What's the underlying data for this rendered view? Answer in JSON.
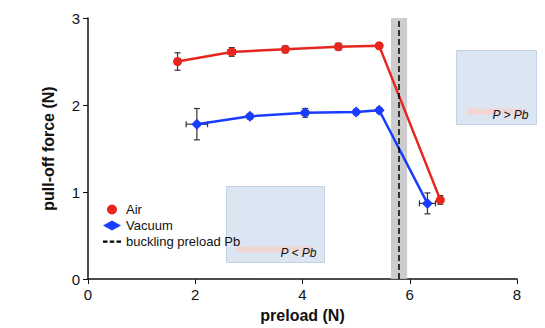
{
  "chart_data": {
    "type": "line",
    "x_label": "preload (N)",
    "y_label": "pull-off force (N)",
    "xlim": [
      0,
      8
    ],
    "xticks": [
      0,
      2,
      4,
      6,
      8
    ],
    "ylim": [
      0,
      3
    ],
    "yticks": [
      0,
      1,
      2,
      3
    ],
    "grid": false,
    "legend": "lower left",
    "series": [
      {
        "name": "Air",
        "color": "#e8261f",
        "marker": "circle",
        "line_style": "solid",
        "x": [
          1.67,
          2.68,
          3.68,
          4.67,
          5.43,
          6.57
        ],
        "values": [
          2.5,
          2.61,
          2.64,
          2.67,
          2.68,
          0.91
        ],
        "x_err": [
          0.05,
          0.07,
          0.04,
          0.05,
          0.03,
          0.05
        ],
        "y_err": [
          0.1,
          0.05,
          0.04,
          0.04,
          0.03,
          0.05
        ]
      },
      {
        "name": "Vacuum",
        "color": "#1a3cff",
        "marker": "diamond",
        "line_style": "solid",
        "x": [
          2.03,
          3.02,
          4.05,
          5.0,
          5.43,
          6.33
        ],
        "values": [
          1.78,
          1.87,
          1.91,
          1.92,
          1.94,
          0.87
        ],
        "x_err": [
          0.2,
          0.05,
          0.06,
          0.04,
          0.03,
          0.15
        ],
        "y_err": [
          0.18,
          0.03,
          0.05,
          0.03,
          0.03,
          0.12
        ]
      },
      {
        "name": "buckling preload Pb",
        "type": "vline",
        "color": "#000000",
        "line_style": "dashed",
        "x": 5.8,
        "band": [
          5.65,
          5.95
        ]
      }
    ],
    "annotations": [
      {
        "text": "P < Pb"
      },
      {
        "text": "P > Pb"
      }
    ]
  }
}
